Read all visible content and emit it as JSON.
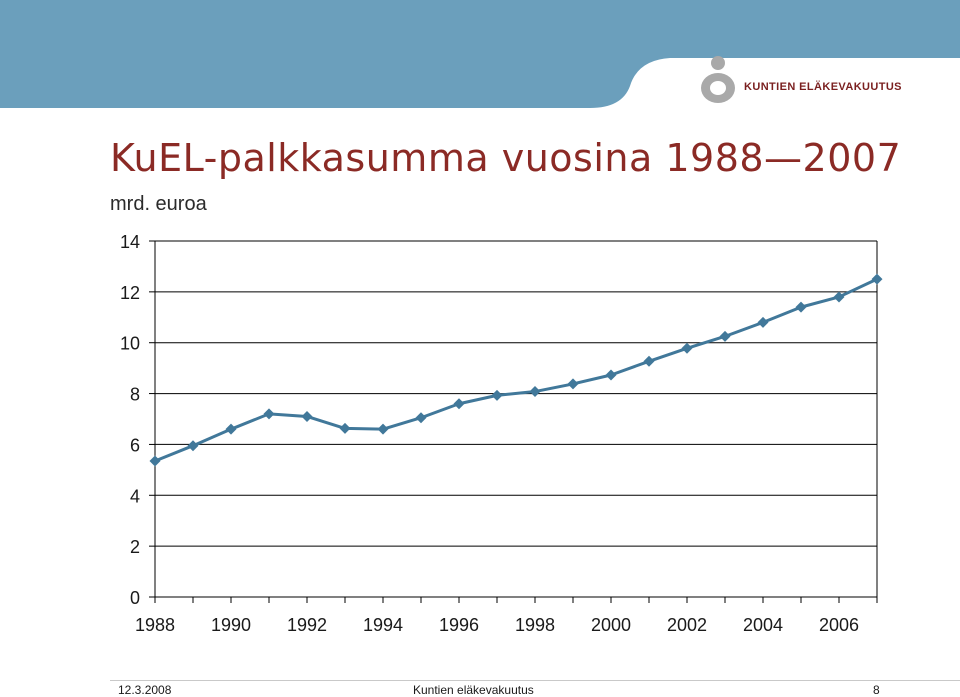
{
  "brand": {
    "name": "KUNTIEN ELÄKEVAKUUTUS",
    "colors": {
      "header_band": "#6b9fbc",
      "title": "#8b2a25",
      "series": "#41789a",
      "logo_grey": "#a9a9a9"
    }
  },
  "slide": {
    "title": "KuEL-palkkasumma vuosina 1988—2007",
    "unit_label": "mrd. euroa"
  },
  "chart_data": {
    "type": "line",
    "title": "KuEL-palkkasumma vuosina 1988—2007",
    "ylabel": "mrd. euroa",
    "xlabel": "",
    "ylim": [
      0,
      14
    ],
    "xlim": [
      1988,
      2007
    ],
    "y_ticks": [
      0,
      2,
      4,
      6,
      8,
      10,
      12,
      14
    ],
    "y_tick_labels": [
      "0",
      "2",
      "4",
      "6",
      "8",
      "10",
      "12",
      "14"
    ],
    "x_tick_labels": [
      "1988",
      "1990",
      "1992",
      "1994",
      "1996",
      "1998",
      "2000",
      "2002",
      "2004",
      "2006"
    ],
    "grid": true,
    "x": [
      1988,
      1989,
      1990,
      1991,
      1992,
      1993,
      1994,
      1995,
      1996,
      1997,
      1998,
      1999,
      2000,
      2001,
      2002,
      2003,
      2004,
      2005,
      2006,
      2007
    ],
    "series": [
      {
        "values": [
          5.35,
          5.95,
          6.6,
          7.2,
          7.1,
          6.63,
          6.6,
          7.05,
          7.6,
          7.93,
          8.08,
          8.38,
          8.73,
          9.27,
          9.78,
          10.25,
          10.8,
          11.4,
          11.8,
          12.5
        ]
      }
    ]
  },
  "footer": {
    "date": "12.3.2008",
    "organization": "Kuntien eläkevakuutus",
    "page_number": "8"
  }
}
